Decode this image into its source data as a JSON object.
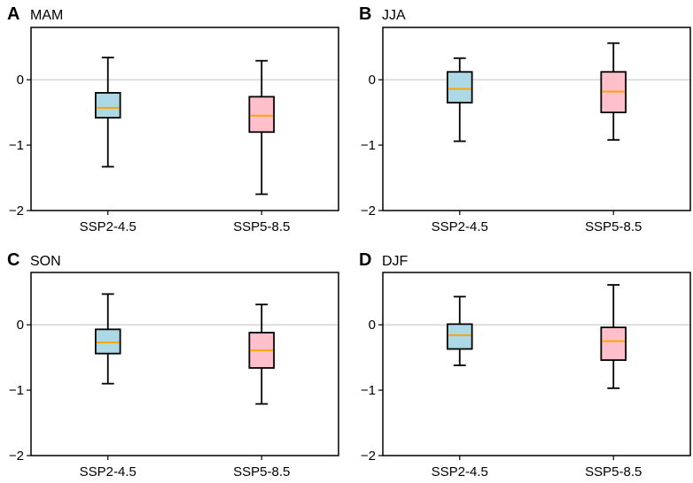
{
  "chart_data": [
    {
      "type": "box",
      "letter": "A",
      "title": "MAM",
      "categories": [
        "SSP2-4.5",
        "SSP5-8.5"
      ],
      "ylim": [
        -2,
        0.8
      ],
      "yticks": [
        0,
        -1,
        -2
      ],
      "ytick_labels": [
        "0",
        "−1",
        "−2"
      ],
      "reference_line": 0,
      "boxes": [
        {
          "category": "SSP2-4.5",
          "whisker_low": -1.33,
          "q1": -0.58,
          "median": -0.43,
          "q3": -0.2,
          "whisker_high": 0.34
        },
        {
          "category": "SSP5-8.5",
          "whisker_low": -1.75,
          "q1": -0.8,
          "median": -0.55,
          "q3": -0.26,
          "whisker_high": 0.29
        }
      ]
    },
    {
      "type": "box",
      "letter": "B",
      "title": "JJA",
      "categories": [
        "SSP2-4.5",
        "SSP5-8.5"
      ],
      "ylim": [
        -2,
        0.8
      ],
      "yticks": [
        0,
        -1,
        -2
      ],
      "ytick_labels": [
        "0",
        "−1",
        "−2"
      ],
      "reference_line": 0,
      "boxes": [
        {
          "category": "SSP2-4.5",
          "whisker_low": -0.94,
          "q1": -0.35,
          "median": -0.14,
          "q3": 0.12,
          "whisker_high": 0.33
        },
        {
          "category": "SSP5-8.5",
          "whisker_low": -0.92,
          "q1": -0.5,
          "median": -0.18,
          "q3": 0.12,
          "whisker_high": 0.56
        }
      ]
    },
    {
      "type": "box",
      "letter": "C",
      "title": "SON",
      "categories": [
        "SSP2-4.5",
        "SSP5-8.5"
      ],
      "ylim": [
        -2,
        0.8
      ],
      "yticks": [
        0,
        -1,
        -2
      ],
      "ytick_labels": [
        "0",
        "−1",
        "−2"
      ],
      "reference_line": 0,
      "boxes": [
        {
          "category": "SSP2-4.5",
          "whisker_low": -0.9,
          "q1": -0.44,
          "median": -0.27,
          "q3": -0.07,
          "whisker_high": 0.47
        },
        {
          "category": "SSP5-8.5",
          "whisker_low": -1.21,
          "q1": -0.66,
          "median": -0.39,
          "q3": -0.12,
          "whisker_high": 0.31
        }
      ]
    },
    {
      "type": "box",
      "letter": "D",
      "title": "DJF",
      "categories": [
        "SSP2-4.5",
        "SSP5-8.5"
      ],
      "ylim": [
        -2,
        0.8
      ],
      "yticks": [
        0,
        -1,
        -2
      ],
      "ytick_labels": [
        "0",
        "−1",
        "−2"
      ],
      "reference_line": 0,
      "boxes": [
        {
          "category": "SSP2-4.5",
          "whisker_low": -0.62,
          "q1": -0.37,
          "median": -0.16,
          "q3": 0.01,
          "whisker_high": 0.43
        },
        {
          "category": "SSP5-8.5",
          "whisker_low": -0.97,
          "q1": -0.54,
          "median": -0.25,
          "q3": -0.04,
          "whisker_high": 0.61
        }
      ]
    }
  ],
  "colors": {
    "box_fill": [
      "#add8e6",
      "#ffc0cb"
    ],
    "median": "#ffa500",
    "reference_line": "#bfbfbf",
    "axis": "#000000"
  }
}
